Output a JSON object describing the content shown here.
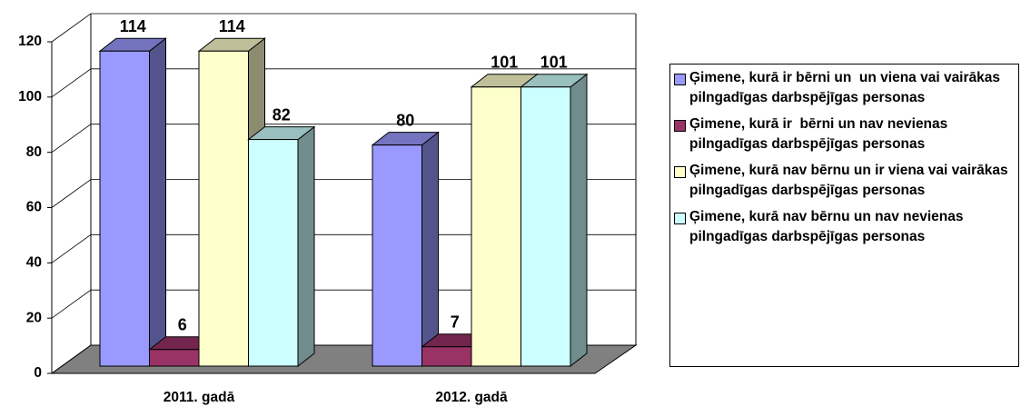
{
  "chart_data": {
    "type": "bar3d",
    "categories": [
      "2011. gadā",
      "2012. gadā"
    ],
    "series": [
      {
        "name": "Ģimene, kurā ir bērni un  un viena vai vairākas pilngadīgas darbspējīgas personas",
        "color": "#9999ff",
        "values": [
          114,
          80
        ]
      },
      {
        "name": "Ģimene, kurā ir  bērni un nav nevienas pilngadīgas darbspējīgas personas",
        "color": "#993366",
        "values": [
          6,
          7
        ]
      },
      {
        "name": "Ģimene, kurā nav bērnu un ir viena vai vairākas pilngadīgas darbspējīgas personas",
        "color": "#ffffcc",
        "values": [
          114,
          101
        ]
      },
      {
        "name": "Ģimene, kurā nav bērnu un nav nevienas pilngadīgas darbspējīgas personas",
        "color": "#ccffff",
        "values": [
          82,
          101
        ]
      }
    ],
    "ylim": [
      0,
      120
    ],
    "yticks": [
      0,
      20,
      40,
      60,
      80,
      100,
      120
    ],
    "grid": true,
    "legend": "right"
  }
}
